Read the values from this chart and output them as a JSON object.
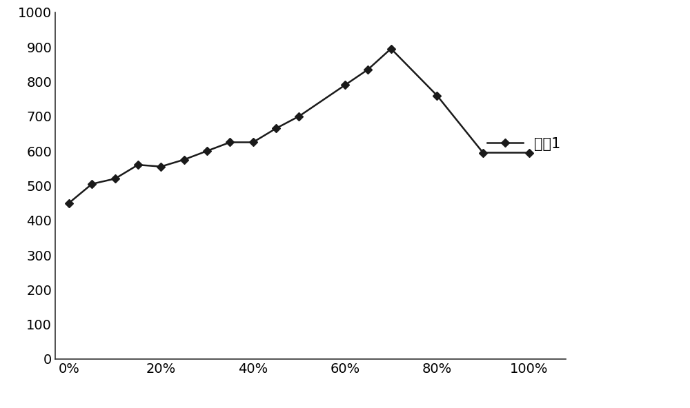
{
  "x_values": [
    0,
    5,
    10,
    15,
    20,
    25,
    30,
    35,
    40,
    45,
    50,
    60,
    65,
    70,
    80,
    90,
    100
  ],
  "y_values": [
    450,
    505,
    520,
    560,
    555,
    575,
    600,
    625,
    625,
    665,
    700,
    790,
    835,
    895,
    760,
    595,
    595
  ],
  "series_label": "系列1",
  "line_color": "#1a1a1a",
  "marker": "D",
  "marker_size": 6,
  "marker_color": "#1a1a1a",
  "linewidth": 1.8,
  "ylim": [
    0,
    1000
  ],
  "yticks": [
    0,
    100,
    200,
    300,
    400,
    500,
    600,
    700,
    800,
    900,
    1000
  ],
  "xtick_labels": [
    "0%",
    "20%",
    "40%",
    "60%",
    "80%",
    "100%"
  ],
  "xtick_positions": [
    0,
    20,
    40,
    60,
    80,
    100
  ],
  "background_color": "#ffffff",
  "font_size": 15,
  "tick_font_size": 14,
  "xlim_left": -3,
  "xlim_right": 108
}
